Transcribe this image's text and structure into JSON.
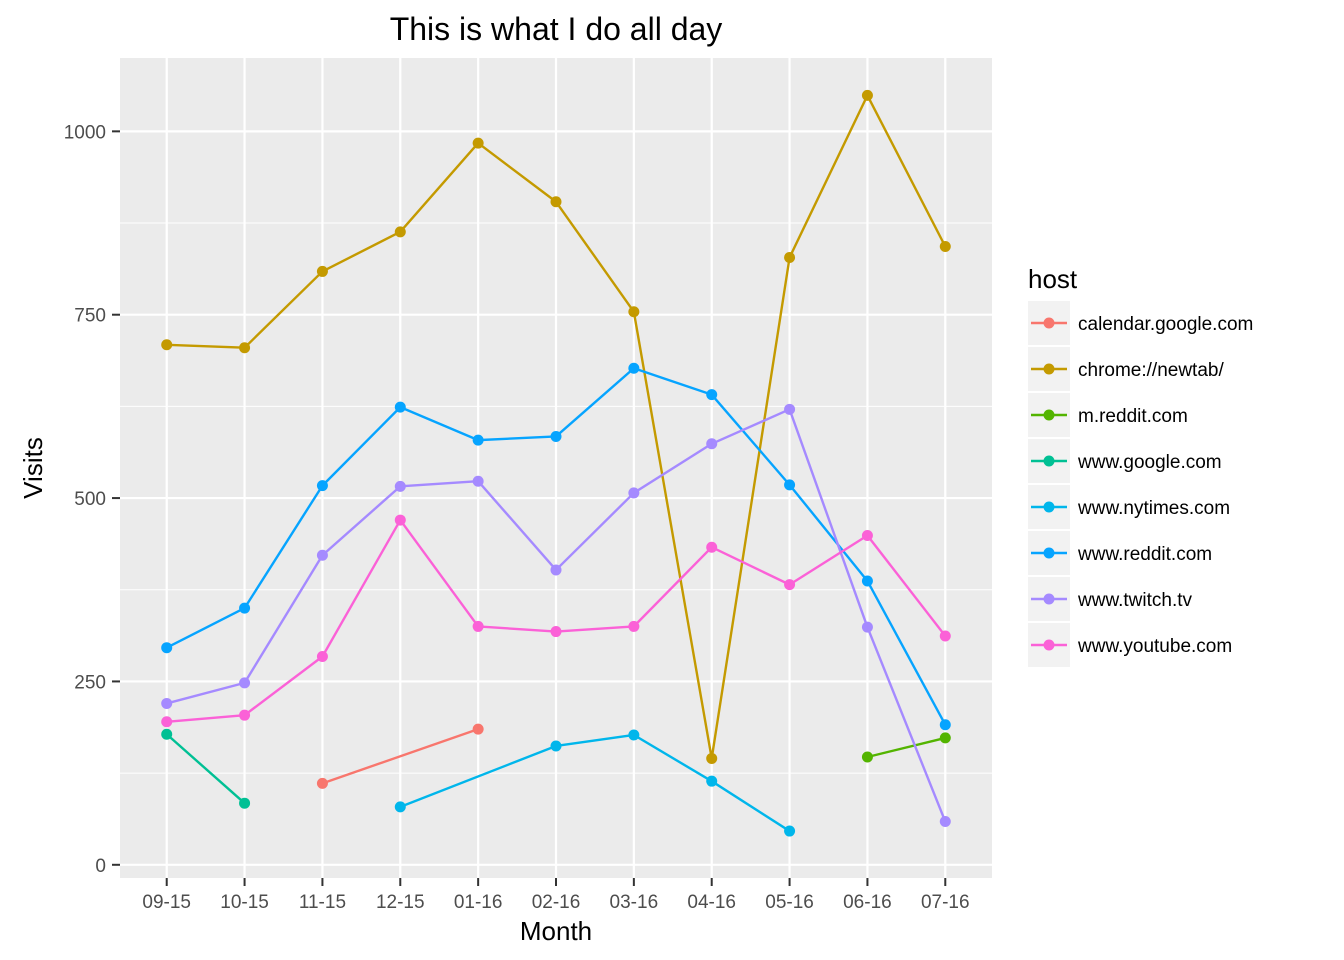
{
  "chart_data": {
    "type": "line",
    "title": "This is what I do all day",
    "xlabel": "Month",
    "ylabel": "Visits",
    "categories": [
      "09-15",
      "10-15",
      "11-15",
      "12-15",
      "01-16",
      "02-16",
      "03-16",
      "04-16",
      "05-16",
      "06-16",
      "07-16"
    ],
    "yticks": [
      0,
      250,
      500,
      750,
      1000
    ],
    "ytick_labels": [
      "0",
      "250",
      "500",
      "750",
      "1000"
    ],
    "ylim": [
      -18,
      1100
    ],
    "grid": true,
    "legend": {
      "title": "host",
      "position": "right"
    },
    "series": [
      {
        "name": "calendar.google.com",
        "color": "#F8766D",
        "values": [
          null,
          null,
          111,
          null,
          185,
          null,
          null,
          null,
          null,
          null,
          null
        ]
      },
      {
        "name": "chrome://newtab/",
        "color": "#C49A00",
        "values": [
          709,
          705,
          809,
          863,
          984,
          904,
          754,
          145,
          828,
          1049,
          843
        ]
      },
      {
        "name": "m.reddit.com",
        "color": "#53B400",
        "values": [
          null,
          null,
          null,
          null,
          null,
          null,
          null,
          null,
          null,
          147,
          173
        ]
      },
      {
        "name": "www.google.com",
        "color": "#00C094",
        "values": [
          178,
          84,
          null,
          null,
          null,
          null,
          null,
          null,
          null,
          null,
          null
        ]
      },
      {
        "name": "www.nytimes.com",
        "color": "#00B6EB",
        "values": [
          null,
          null,
          null,
          79,
          null,
          162,
          177,
          114,
          46,
          null,
          null
        ]
      },
      {
        "name": "www.reddit.com",
        "color": "#06A4FF",
        "values": [
          296,
          350,
          517,
          624,
          579,
          584,
          677,
          641,
          518,
          387,
          191
        ]
      },
      {
        "name": "www.twitch.tv",
        "color": "#A58AFF",
        "values": [
          220,
          248,
          422,
          516,
          523,
          402,
          507,
          574,
          621,
          324,
          59
        ]
      },
      {
        "name": "www.youtube.com",
        "color": "#FB61D7",
        "values": [
          195,
          204,
          284,
          470,
          325,
          318,
          325,
          433,
          382,
          449,
          312
        ]
      }
    ]
  }
}
